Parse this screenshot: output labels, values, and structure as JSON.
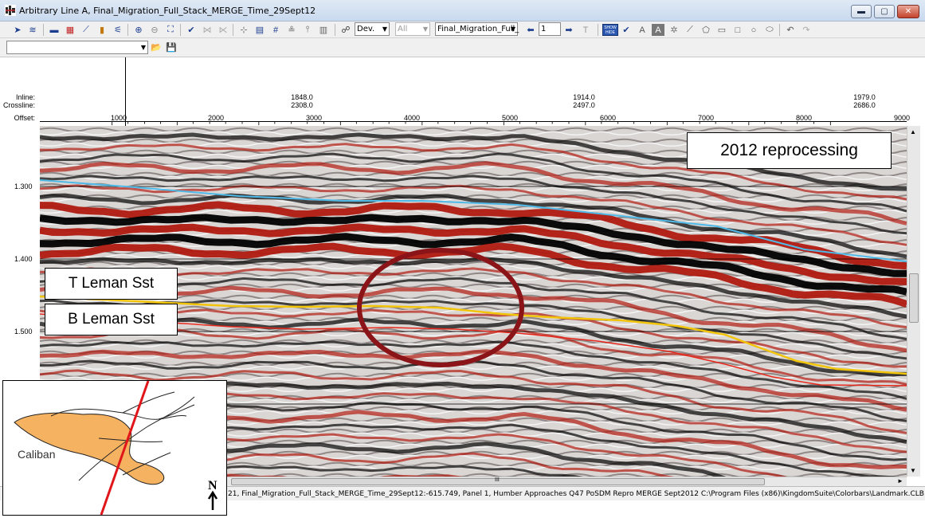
{
  "window": {
    "title": "Arbitrary Line A, Final_Migration_Full_Stack_MERGE_Time_29Sept12",
    "minimize": "▬",
    "maximize": "▢",
    "close": "✕"
  },
  "toolbar": {
    "combo_dev": "Dev.",
    "combo_all": "All",
    "combo_volume": "Final_Migration_Full_",
    "step_value": "1",
    "show_hide_label": "SHOW HIDE"
  },
  "section_header": {
    "labels": {
      "inline": "Inline:",
      "crossline": "Crossline:",
      "offset": "Offset:"
    },
    "positions": [
      {
        "inline": "1848.0",
        "crossline": "2308.0"
      },
      {
        "inline": "1914.0",
        "crossline": "2497.0"
      },
      {
        "inline": "1979.0",
        "crossline": "2686.0"
      }
    ],
    "offset_ticks": [
      "1000",
      "2000",
      "3000",
      "4000",
      "5000",
      "6000",
      "7000",
      "8000",
      "9000"
    ]
  },
  "time_axis": {
    "labels": [
      "1.300",
      "1.400",
      "1.500"
    ]
  },
  "annotations": {
    "reprocessing": "2012 reprocessing",
    "top_horizon": "T Leman Sst",
    "base_horizon": "B Leman Sst"
  },
  "inset_map": {
    "label": "Caliban",
    "north": "N"
  },
  "scrollbar": {
    "grip": "III"
  },
  "status": {
    "text": "21,  Final_Migration_Full_Stack_MERGE_Time_29Sept12:-615.749,  Panel 1,  Humber Approaches Q47 PoSDM Repro MERGE Sept2012   C:\\Program Files (x86)\\KingdomSuite\\Colorbars\\Landmark.CLB"
  },
  "colors": {
    "peak": "#000000",
    "trough": "#b01a10",
    "top_horizon": "#f2c40a",
    "base_horizon": "#e8281c",
    "shallow_horizon": "#4fb9e8",
    "circle": "#8a1418",
    "fault_line": "#e0161a",
    "caliban_fill": "#f5b261"
  }
}
